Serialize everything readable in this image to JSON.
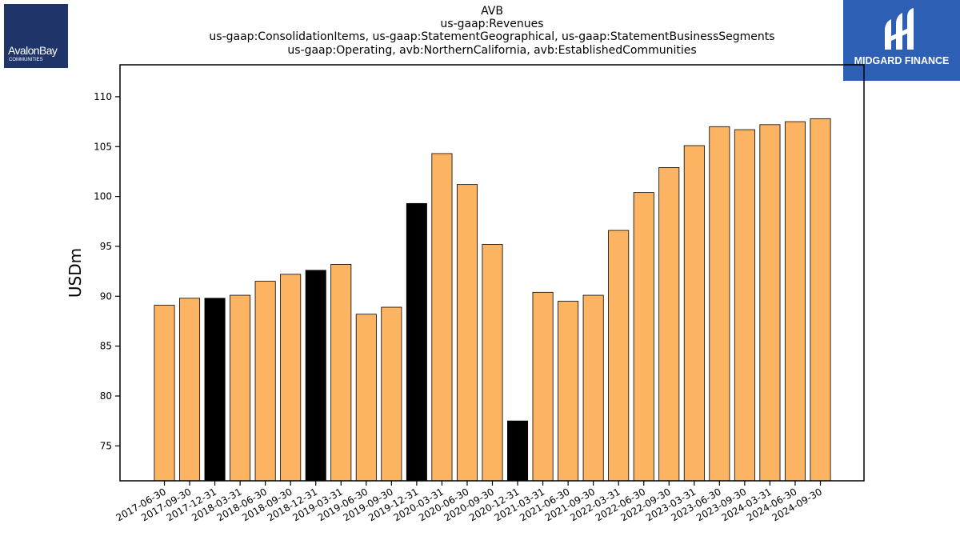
{
  "header": {
    "title_lines": [
      "AVB",
      "us-gaap:Revenues",
      "us-gaap:ConsolidationItems, us-gaap:StatementGeographical, us-gaap:StatementBusinessSegments",
      "us-gaap:Operating, avb:NorthernCalifornia, avb:EstablishedCommunities"
    ]
  },
  "logos": {
    "left": {
      "name": "AvalonBay",
      "sub": "COMMUNITIES"
    },
    "right": {
      "name": "MIDGARD FINANCE"
    }
  },
  "colors": {
    "normal": "#fdb462",
    "highlight": "#000000",
    "logo_left_bg": "#1f3468",
    "logo_right_bg": "#2d5fb5"
  },
  "chart_data": {
    "type": "bar",
    "title": "AVB\nus-gaap:Revenues\nus-gaap:ConsolidationItems, us-gaap:StatementGeographical, us-gaap:StatementBusinessSegments\nus-gaap:Operating, avb:NorthernCalifornia, avb:EstablishedCommunities",
    "xlabel": "",
    "ylabel": "USDm",
    "ylim": [
      71.5,
      113.2
    ],
    "yticks": [
      75,
      80,
      85,
      90,
      95,
      100,
      105,
      110
    ],
    "grid": false,
    "categories": [
      "2017-06-30",
      "2017-09-30",
      "2017-12-31",
      "2018-03-31",
      "2018-06-30",
      "2018-09-30",
      "2018-12-31",
      "2019-03-31",
      "2019-06-30",
      "2019-09-30",
      "2019-12-31",
      "2020-03-31",
      "2020-06-30",
      "2020-09-30",
      "2020-12-31",
      "2021-03-31",
      "2021-06-30",
      "2021-09-30",
      "2022-03-31",
      "2022-06-30",
      "2022-09-30",
      "2023-03-31",
      "2023-06-30",
      "2023-09-30",
      "2024-03-31",
      "2024-06-30",
      "2024-09-30"
    ],
    "values": [
      89.1,
      89.8,
      89.8,
      90.1,
      91.5,
      92.2,
      92.6,
      93.2,
      88.2,
      88.9,
      99.3,
      104.3,
      101.2,
      95.2,
      77.5,
      90.4,
      89.5,
      90.1,
      96.6,
      100.4,
      102.9,
      105.1,
      107.0,
      106.7,
      107.2,
      107.5,
      107.8
    ],
    "highlighted": [
      false,
      false,
      true,
      false,
      false,
      false,
      true,
      false,
      false,
      false,
      true,
      false,
      false,
      false,
      true,
      false,
      false,
      false,
      false,
      false,
      false,
      false,
      false,
      false,
      false,
      false,
      false
    ]
  }
}
